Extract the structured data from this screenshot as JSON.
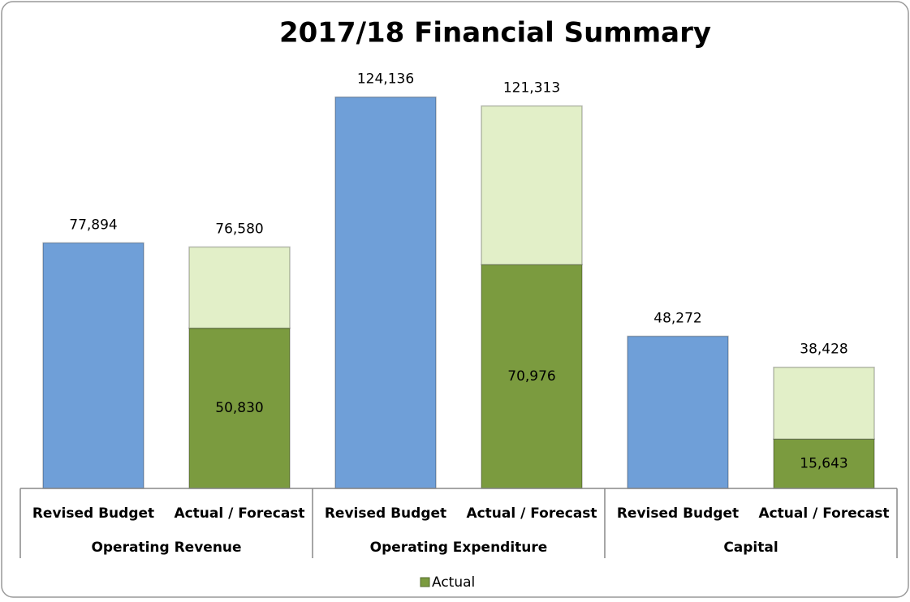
{
  "chart_data": {
    "type": "stacked-bar",
    "title": "2017/18 Financial Summary",
    "categories": [
      "Revised Budget",
      "Actual / Forecast",
      "Revised Budget",
      "Actual / Forecast",
      "Revised Budget",
      "Actual / Forecast"
    ],
    "groups": [
      "Operating Revenue",
      "Operating Expenditure",
      "Capital"
    ],
    "series": [
      {
        "color": "#6f9fd8",
        "values": [
          77894,
          null,
          124136,
          null,
          48272,
          null
        ]
      },
      {
        "name": "Actual",
        "color": "#7b9b3f",
        "values": [
          null,
          50830,
          null,
          70976,
          null,
          15643
        ],
        "value_labels": [
          null,
          "50,830",
          null,
          "70,976",
          null,
          "15,643"
        ]
      },
      {
        "color": "#e2efc8",
        "values": [
          null,
          25750,
          null,
          50337,
          null,
          22785
        ]
      }
    ],
    "totals": [
      77894,
      76580,
      124136,
      121313,
      48272,
      38428
    ],
    "total_labels": [
      "77,894",
      "76,580",
      "124,136",
      "121,313",
      "48,272",
      "38,428"
    ],
    "ylim": [
      0,
      140000
    ],
    "legend": "bottom"
  }
}
